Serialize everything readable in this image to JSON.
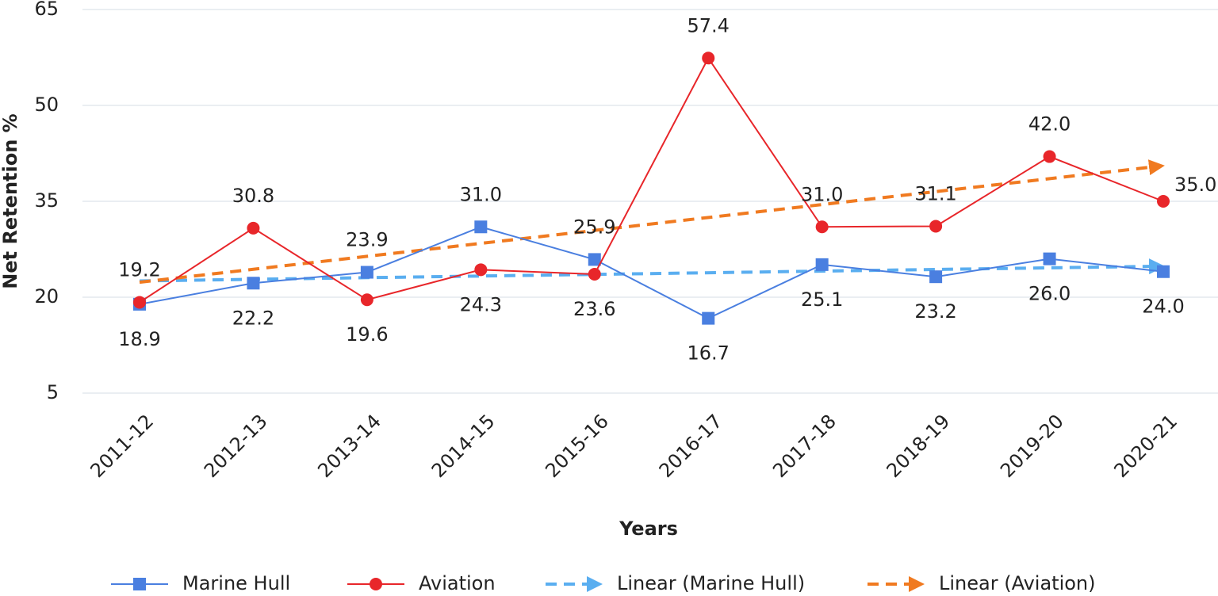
{
  "chart_data": {
    "type": "line",
    "x_label": "Years",
    "y_label": "Net Retention %",
    "categories": [
      "2011-12",
      "2012-13",
      "2013-14",
      "2014-15",
      "2015-16",
      "2016-17",
      "2017-18",
      "2018-19",
      "2019-20",
      "2020-21"
    ],
    "series": [
      {
        "name": "Marine Hull",
        "color": "#4a7fe0",
        "marker": "square",
        "values": [
          18.9,
          22.2,
          23.9,
          31.0,
          25.9,
          16.7,
          25.1,
          23.2,
          26.0,
          24.0
        ],
        "value_labels": [
          "18.9",
          "22.2",
          "23.9",
          "31.0",
          "25.9",
          "16.7",
          "25.1",
          "23.2",
          "26.0",
          "24.0"
        ],
        "trendline": {
          "name": "Linear (Marine Hull)",
          "color": "#5aaef0"
        }
      },
      {
        "name": "Aviation",
        "color": "#e8262a",
        "marker": "circle",
        "values": [
          19.2,
          30.8,
          19.6,
          24.3,
          23.6,
          57.4,
          31.0,
          31.1,
          42.0,
          35.0
        ],
        "value_labels": [
          "19.2",
          "30.8",
          "19.6",
          "24.3",
          "23.6",
          "57.4",
          "31.0",
          "31.1",
          "42.0",
          "35.0"
        ],
        "trendline": {
          "name": "Linear (Aviation)",
          "color": "#f07a20"
        }
      }
    ],
    "ylim": [
      5,
      65
    ],
    "yticks": [
      5,
      20,
      35,
      50,
      65
    ],
    "grid": true,
    "legend": "bottom"
  }
}
